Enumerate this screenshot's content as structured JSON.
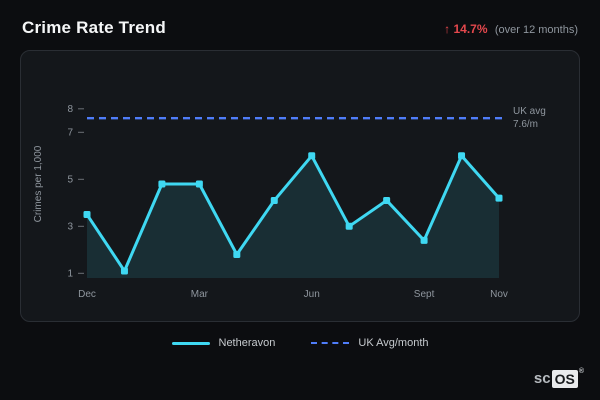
{
  "header": {
    "title": "Crime Rate Trend",
    "stat": "↑ 14.7%",
    "stat_note": "(over 12 months)",
    "stat_color": "#e5484d"
  },
  "chart_data": {
    "type": "line",
    "n_points": 12,
    "x_ticks": [
      {
        "i": 0,
        "label": "Dec"
      },
      {
        "i": 3,
        "label": "Mar"
      },
      {
        "i": 6,
        "label": "Jun"
      },
      {
        "i": 9,
        "label": "Sept"
      },
      {
        "i": 11,
        "label": "Nov"
      }
    ],
    "series": [
      {
        "name": "Netheravon",
        "color": "#3fd8f2",
        "values": [
          3.5,
          1.1,
          4.8,
          4.8,
          1.8,
          4.1,
          6.0,
          3.0,
          4.1,
          2.4,
          6.0,
          4.2
        ]
      }
    ],
    "reference_line": {
      "name": "UK Avg/month",
      "value": 7.6,
      "label_line1": "UK avg",
      "label_line2": "7.6/m",
      "color": "#4f7df9"
    },
    "ylabel": "Crimes per 1,000",
    "yticks": [
      1,
      3,
      5,
      7,
      8
    ],
    "ylim": [
      0.8,
      8.8
    ],
    "area_color": "rgba(64,214,240,0.12)",
    "grid": false,
    "legend_position": "bottom"
  },
  "legend": [
    {
      "label": "Netheravon",
      "type": "solid",
      "color": "#3fd8f2"
    },
    {
      "label": "UK Avg/month",
      "type": "dashed",
      "color": "#4f7df9"
    }
  ],
  "logo": {
    "text_plain": "sc",
    "text_boxed": "OS",
    "registered": "®"
  }
}
